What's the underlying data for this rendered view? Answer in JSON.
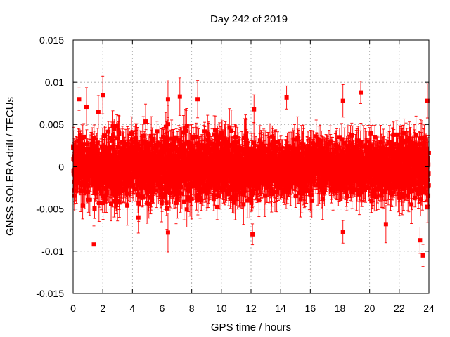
{
  "chart_data": {
    "type": "scatter",
    "title": "Day 242 of 2019",
    "xlabel": "GPS time / hours",
    "ylabel": "GNSS SOLERA-drift / TECUs",
    "xlim": [
      0,
      24
    ],
    "ylim": [
      -0.015,
      0.015
    ],
    "x_ticks": [
      0,
      2,
      4,
      6,
      8,
      10,
      12,
      14,
      16,
      18,
      20,
      22,
      24
    ],
    "x_tick_labels": [
      "0",
      "2",
      "4",
      "6",
      "8",
      "10",
      "12",
      "14",
      "16",
      "18",
      "20",
      "22",
      "24"
    ],
    "y_ticks": [
      -0.015,
      -0.01,
      -0.005,
      0,
      0.005,
      0.01,
      0.015
    ],
    "y_tick_labels": [
      "-0.015",
      "-0.01",
      "-0.005",
      "0",
      "0.005",
      "0.01",
      "0.015"
    ],
    "grid": true,
    "error_bars": true,
    "series_color": "#ff0000",
    "notable_points": [
      {
        "x": 0.4,
        "y": 0.008
      },
      {
        "x": 0.9,
        "y": 0.0071
      },
      {
        "x": 1.4,
        "y": -0.0092
      },
      {
        "x": 1.7,
        "y": 0.0065
      },
      {
        "x": 2.0,
        "y": 0.0085
      },
      {
        "x": 4.4,
        "y": -0.006
      },
      {
        "x": 6.4,
        "y": 0.008
      },
      {
        "x": 6.4,
        "y": -0.0078
      },
      {
        "x": 7.2,
        "y": 0.0083
      },
      {
        "x": 8.4,
        "y": 0.008
      },
      {
        "x": 12.2,
        "y": 0.0068
      },
      {
        "x": 12.1,
        "y": -0.008
      },
      {
        "x": 14.4,
        "y": 0.0082
      },
      {
        "x": 18.2,
        "y": 0.0078
      },
      {
        "x": 18.2,
        "y": -0.0077
      },
      {
        "x": 19.4,
        "y": 0.0088
      },
      {
        "x": 21.1,
        "y": -0.0068
      },
      {
        "x": 23.6,
        "y": -0.0105
      },
      {
        "x": 23.4,
        "y": -0.0087
      },
      {
        "x": 23.9,
        "y": 0.0078
      }
    ]
  }
}
